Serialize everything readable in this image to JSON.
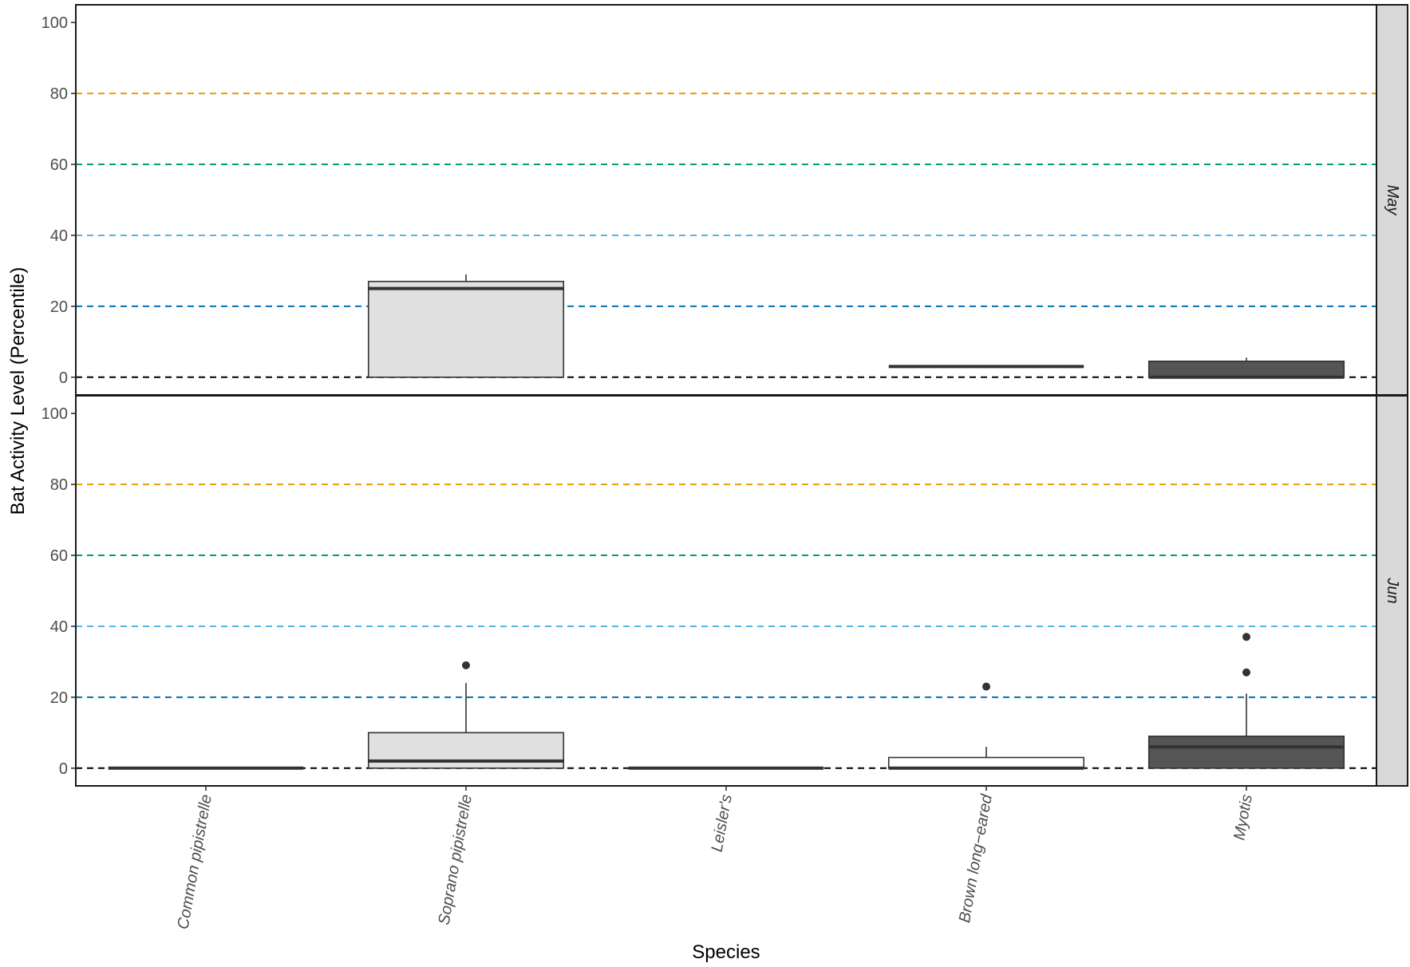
{
  "chart_data": {
    "type": "boxplot",
    "xlabel": "Species",
    "ylabel": "Bat Activity Level (Percentile)",
    "ylim": [
      -5,
      105
    ],
    "yticks": [
      0,
      20,
      40,
      60,
      80,
      100
    ],
    "categories": [
      "Common pipistrelle",
      "Soprano pipistrelle",
      "Leisler's",
      "Brown long−eared",
      "Myotis"
    ],
    "grid": false,
    "reference_lines": [
      {
        "y": 0,
        "color": "#000000"
      },
      {
        "y": 20,
        "color": "#0072B2"
      },
      {
        "y": 40,
        "color": "#56B4E9"
      },
      {
        "y": 60,
        "color": "#009E73"
      },
      {
        "y": 80,
        "color": "#E69F00"
      }
    ],
    "fill_colors": [
      "#ffffff",
      "#e0e0e0",
      "#ffffff",
      "#ffffff",
      "#555555"
    ],
    "panels": [
      {
        "label": "May",
        "boxes": [
          null,
          {
            "category": "Soprano pipistrelle",
            "q1": 0,
            "median": 25,
            "q3": 27,
            "whisker_low": 0,
            "whisker_high": 29,
            "outliers": []
          },
          null,
          {
            "category": "Brown long−eared",
            "q1": 3,
            "median": 3,
            "q3": 3,
            "whisker_low": 3,
            "whisker_high": 3,
            "outliers": []
          },
          {
            "category": "Myotis",
            "q1": 0,
            "median": 0,
            "q3": 4.5,
            "whisker_low": 0,
            "whisker_high": 5.5,
            "outliers": []
          }
        ]
      },
      {
        "label": "Jun",
        "boxes": [
          {
            "category": "Common pipistrelle",
            "q1": 0,
            "median": 0,
            "q3": 0,
            "whisker_low": 0,
            "whisker_high": 0,
            "outliers": []
          },
          {
            "category": "Soprano pipistrelle",
            "q1": 0,
            "median": 2,
            "q3": 10,
            "whisker_low": 0,
            "whisker_high": 24,
            "outliers": [
              29
            ]
          },
          {
            "category": "Leisler's",
            "q1": 0,
            "median": 0,
            "q3": 0,
            "whisker_low": 0,
            "whisker_high": 0,
            "outliers": []
          },
          {
            "category": "Brown long−eared",
            "q1": 0,
            "median": 0,
            "q3": 3,
            "whisker_low": 0,
            "whisker_high": 6,
            "outliers": [
              23
            ]
          },
          {
            "category": "Myotis",
            "q1": 0,
            "median": 6,
            "q3": 9,
            "whisker_low": 0,
            "whisker_high": 21,
            "outliers": [
              27,
              37
            ]
          }
        ]
      }
    ]
  }
}
